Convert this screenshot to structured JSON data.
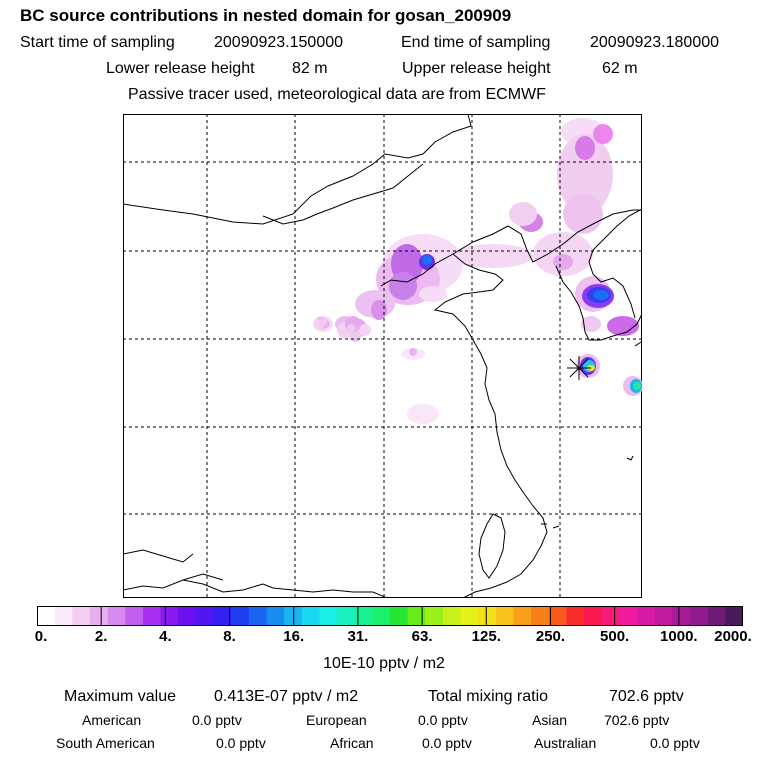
{
  "title": "BC  source contributions in nested domain for gosan_200909",
  "sampling": {
    "start_label": "Start time of sampling",
    "start_value": "20090923.150000",
    "end_label": "End time of sampling",
    "end_value": "20090923.180000"
  },
  "release": {
    "lower_label": "Lower release height",
    "lower_value": "82 m",
    "upper_label": "Upper release height",
    "upper_value": "62 m"
  },
  "note": "Passive tracer used, meteorological data are from ECMWF",
  "colorbar": {
    "ticks": [
      "0.",
      "2.",
      "4.",
      "8.",
      "16.",
      "31.",
      "63.",
      "125.",
      "250.",
      "500.",
      "1000.",
      "2000."
    ],
    "colors": [
      "#ffffff",
      "#fbe8fb",
      "#f4cdf4",
      "#eaaff0",
      "#d88aee",
      "#c35ff0",
      "#a62ff2",
      "#8a1af0",
      "#6d10f0",
      "#5016f0",
      "#3420f0",
      "#1e3ef0",
      "#1a64f0",
      "#1a8cf0",
      "#1ab4f0",
      "#1ad8f0",
      "#1af0e6",
      "#1af0c0",
      "#1af096",
      "#1af06c",
      "#26e632",
      "#66ec1a",
      "#9cf01a",
      "#c8f01a",
      "#e8f01a",
      "#f4e01a",
      "#f8c21a",
      "#f8a01a",
      "#f8801a",
      "#f85a1a",
      "#f82a2a",
      "#f81a50",
      "#f81a78",
      "#f01aa0",
      "#d81aa8",
      "#c01aa0",
      "#a81a98",
      "#901a90",
      "#701a78",
      "#4a1a5a"
    ],
    "unit": "10E-10 pptv / m2"
  },
  "summary": {
    "max_label": "Maximum value",
    "max_value": "0.413E-07 pptv / m2",
    "total_label": "Total mixing ratio",
    "total_value": "702.6 pptv",
    "regions": [
      {
        "name": "American",
        "value": "0.0 pptv"
      },
      {
        "name": "European",
        "value": "0.0 pptv"
      },
      {
        "name": "Asian",
        "value": "702.6 pptv"
      },
      {
        "name": "South American",
        "value": "0.0 pptv"
      },
      {
        "name": "African",
        "value": "0.0 pptv"
      },
      {
        "name": "Australian",
        "value": "0.0 pptv"
      }
    ]
  }
}
